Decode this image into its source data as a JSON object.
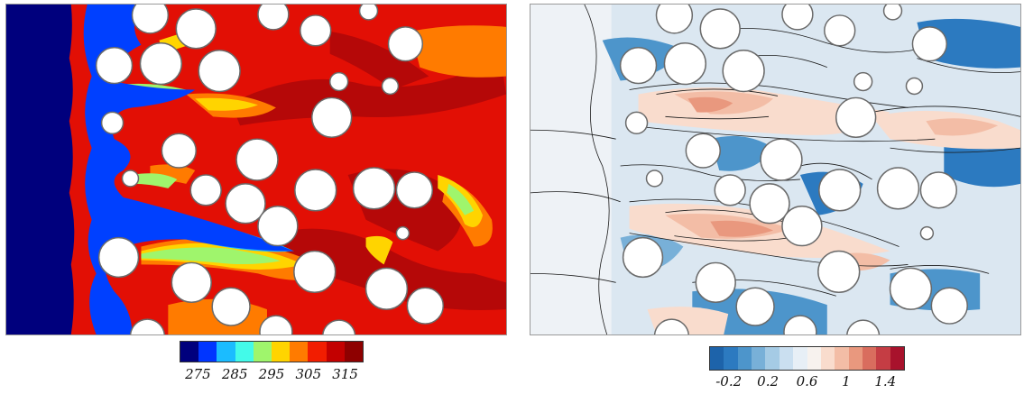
{
  "left_figure": {
    "colors": [
      "#00007d",
      "#0035ff",
      "#1bbcff",
      "#43fae9",
      "#9ff56c",
      "#ffd400",
      "#ff7b00",
      "#f21d00",
      "#c30000",
      "#8e0000"
    ],
    "tick_labels": [
      "275",
      "285",
      "295",
      "305",
      "315"
    ],
    "tick_values": [
      275,
      285,
      295,
      305,
      315
    ],
    "range": [
      270,
      320
    ],
    "field_color": "#e20f05",
    "dark_patch_color": "#b80808",
    "cold_region_color": "#00007d",
    "inlet_band_color": "#0040ff"
  },
  "right_figure": {
    "colors": [
      "#1d63aa",
      "#2c7ac0",
      "#4d95cb",
      "#78b0d8",
      "#a5cbe5",
      "#cadff0",
      "#e7eff6",
      "#f7f2ee",
      "#f9dccd",
      "#f3bda6",
      "#e9987e",
      "#d96d5e",
      "#c53d44",
      "#a8122c"
    ],
    "tick_labels": [
      "-0.2",
      "0.2",
      "0.6",
      "1",
      "1.4"
    ],
    "tick_values": [
      -0.2,
      0.2,
      0.6,
      1.0,
      1.4
    ],
    "range": [
      -0.4,
      1.6
    ],
    "background_color": "#dbe7f1",
    "contour_color": "#1a1a1a"
  }
}
